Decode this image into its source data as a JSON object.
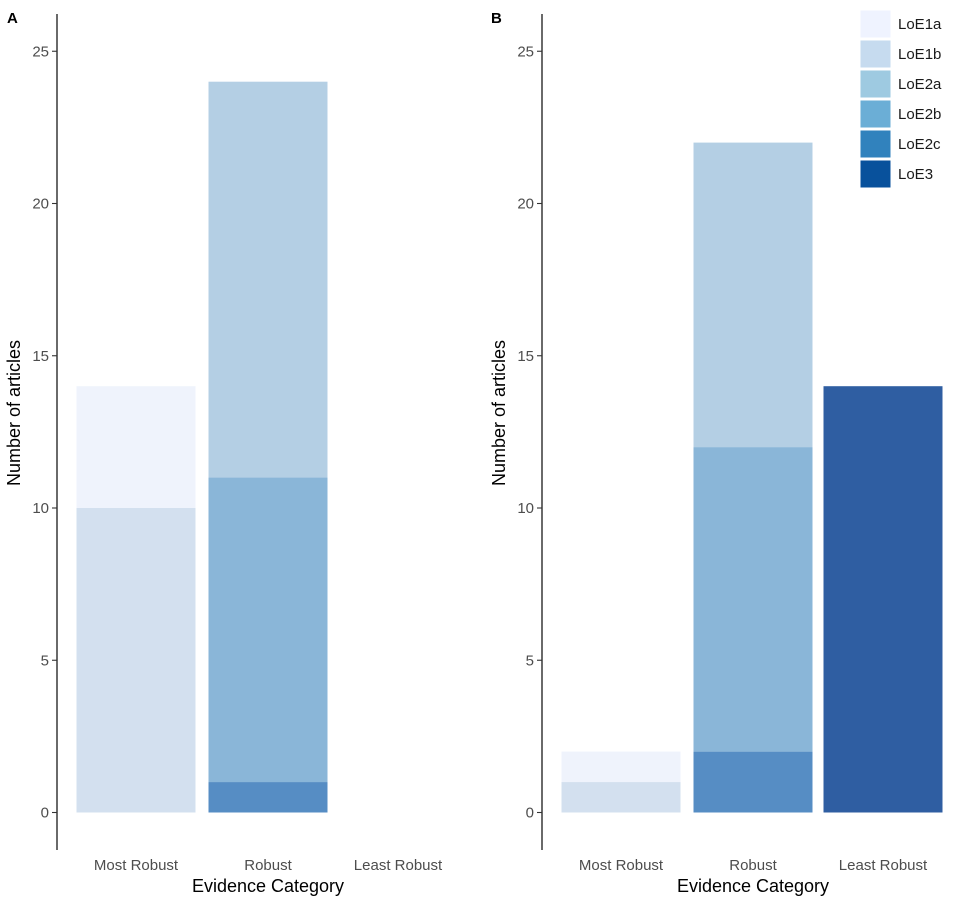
{
  "chart_data": [
    {
      "type": "bar",
      "stacked": true,
      "panel_label": "A",
      "title": "",
      "xlabel": "Evidence Category",
      "ylabel": "Number of articles",
      "ylim": [
        0,
        26
      ],
      "yticks": [
        0,
        5,
        10,
        15,
        20,
        25
      ],
      "grid": false,
      "categories": [
        "Most Robust",
        "Robust",
        "Least Robust"
      ],
      "series": [
        {
          "name": "LoE1a",
          "values": [
            4,
            0,
            0
          ]
        },
        {
          "name": "LoE1b",
          "values": [
            10,
            0,
            0
          ]
        },
        {
          "name": "LoE2a",
          "values": [
            0,
            13,
            0
          ]
        },
        {
          "name": "LoE2b",
          "values": [
            0,
            10,
            0
          ]
        },
        {
          "name": "LoE2c",
          "values": [
            0,
            1,
            0
          ]
        },
        {
          "name": "LoE3",
          "values": [
            0,
            0,
            0
          ]
        }
      ]
    },
    {
      "type": "bar",
      "stacked": true,
      "panel_label": "B",
      "title": "",
      "xlabel": "Evidence Category",
      "ylabel": "Number of articles",
      "ylim": [
        0,
        26
      ],
      "yticks": [
        0,
        5,
        10,
        15,
        20,
        25
      ],
      "grid": false,
      "categories": [
        "Most Robust",
        "Robust",
        "Least Robust"
      ],
      "series": [
        {
          "name": "LoE1a",
          "values": [
            1,
            0,
            0
          ]
        },
        {
          "name": "LoE1b",
          "values": [
            1,
            0,
            0
          ]
        },
        {
          "name": "LoE2a",
          "values": [
            0,
            10,
            0
          ]
        },
        {
          "name": "LoE2b",
          "values": [
            0,
            10,
            0
          ]
        },
        {
          "name": "LoE2c",
          "values": [
            0,
            2,
            0
          ]
        },
        {
          "name": "LoE3",
          "values": [
            0,
            0,
            14
          ]
        }
      ],
      "legend_position": "top-right"
    }
  ],
  "legend": {
    "stack_order_bottom_to_top": [
      "LoE2c",
      "LoE2b",
      "LoE1b",
      "LoE2a",
      "LoE1a",
      "LoE3"
    ],
    "items": [
      {
        "name": "LoE1a",
        "swatch": "#eff3ff",
        "bar": "#eff3fc"
      },
      {
        "name": "LoE1b",
        "swatch": "#c6dbef",
        "bar": "#d3e0ef"
      },
      {
        "name": "LoE2a",
        "swatch": "#9ecae1",
        "bar": "#b4cfe4"
      },
      {
        "name": "LoE2b",
        "swatch": "#6baed6",
        "bar": "#8ab6d8"
      },
      {
        "name": "LoE2c",
        "swatch": "#3182bd",
        "bar": "#568dc4"
      },
      {
        "name": "LoE3",
        "swatch": "#08519c",
        "bar": "#2f5ea2"
      }
    ]
  }
}
